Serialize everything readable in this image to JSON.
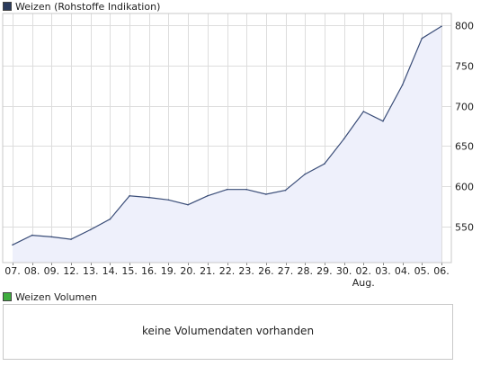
{
  "legend": {
    "price": {
      "label": "Weizen (Rohstoffe Indikation)",
      "color": "#2a3a5c"
    },
    "volume": {
      "label": "Weizen Volumen",
      "color": "#3fae3f"
    }
  },
  "volume_panel": {
    "message": "keine Volumendaten vorhanden"
  },
  "colors": {
    "line": "#3a4d78",
    "fill": "#eef0fb",
    "grid": "#dddddd",
    "border": "#c8c8c8"
  },
  "chart_data": {
    "type": "area",
    "series": [
      {
        "name": "Weizen (Rohstoffe Indikation)",
        "values": [
          527,
          539,
          537,
          534,
          546,
          559,
          588,
          586,
          583,
          577,
          588,
          596,
          596,
          590,
          595,
          615,
          628,
          659,
          693,
          681,
          726,
          784,
          799
        ]
      }
    ],
    "categories": [
      "07.",
      "08.",
      "09.",
      "12.",
      "13.",
      "14.",
      "15.",
      "16.",
      "19.",
      "20.",
      "21.",
      "22.",
      "23.",
      "26.",
      "27.",
      "28.",
      "29.",
      "30.",
      "02.",
      "03.",
      "04.",
      "05.",
      "06."
    ],
    "month_marker": {
      "category_index": 18,
      "label": "Aug."
    },
    "y_ticks": [
      550,
      600,
      650,
      700,
      750,
      800
    ],
    "ylim": [
      505,
      815
    ],
    "grid": true,
    "y_axis_side": "right"
  }
}
